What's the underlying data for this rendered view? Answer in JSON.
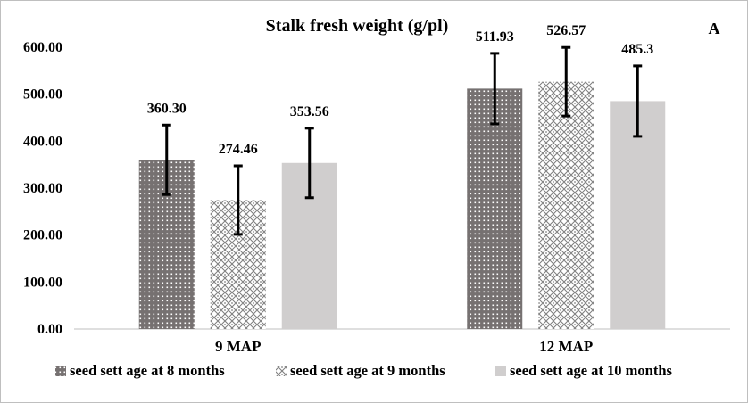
{
  "chart_data": {
    "type": "bar",
    "title": "Stalk fresh weight (g/pl)",
    "panel_label": "A",
    "categories": [
      "9 MAP",
      "12 MAP"
    ],
    "y_ticks": [
      "0.00",
      "100.00",
      "200.00",
      "300.00",
      "400.00",
      "500.00",
      "600.00"
    ],
    "ylim": [
      0,
      600
    ],
    "grid": false,
    "legend_position": "bottom",
    "series": [
      {
        "name": "seed sett age at 8 months",
        "values": [
          360.3,
          511.93
        ],
        "labels": [
          "360.30",
          "511.93"
        ],
        "error": [
          74,
          75
        ],
        "color": "#767171",
        "pattern": "dots"
      },
      {
        "name": "seed sett age at 9 months",
        "values": [
          274.46,
          526.57
        ],
        "labels": [
          "274.46",
          "526.57"
        ],
        "error": [
          73,
          73
        ],
        "color": "#808080",
        "pattern": "diamond-lattice"
      },
      {
        "name": "seed sett age at 10 months",
        "values": [
          353.56,
          485.3
        ],
        "labels": [
          "353.56",
          "485.3"
        ],
        "error": [
          74,
          75
        ],
        "color": "#d0cece",
        "pattern": "solid"
      }
    ]
  }
}
